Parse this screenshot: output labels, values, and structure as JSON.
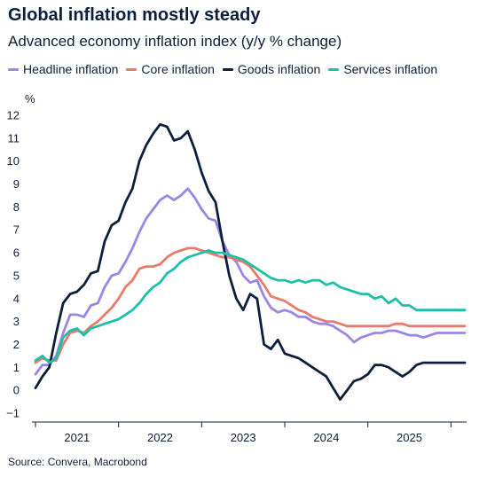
{
  "chart_data": {
    "type": "line",
    "title": "Global inflation mostly steady",
    "subtitle": "Advanced economy inflation index (y/y % change)",
    "ylabel": "%",
    "xlabel": "",
    "ylim": [
      -1,
      12
    ],
    "yticks": [
      -1,
      0,
      1,
      2,
      3,
      4,
      5,
      6,
      7,
      8,
      9,
      10,
      11,
      12
    ],
    "xlim": [
      2020.0,
      2025.167
    ],
    "xticks": [
      {
        "label": "2021",
        "pos": 2020.5
      },
      {
        "label": "2022",
        "pos": 2021.5
      },
      {
        "label": "2023",
        "pos": 2022.5
      },
      {
        "label": "2024",
        "pos": 2023.5
      },
      {
        "label": "2025",
        "pos": 2024.5
      }
    ],
    "year_separators": [
      2020.0,
      2021.0,
      2022.0,
      2023.0,
      2024.0,
      2025.0
    ],
    "legend_position": "top",
    "grid": false,
    "series": [
      {
        "name": "Headline inflation",
        "color": "#9b86e6",
        "x": [
          2020.0,
          2020.083,
          2020.167,
          2020.25,
          2020.333,
          2020.417,
          2020.5,
          2020.583,
          2020.667,
          2020.75,
          2020.833,
          2020.917,
          2021.0,
          2021.083,
          2021.167,
          2021.25,
          2021.333,
          2021.417,
          2021.5,
          2021.583,
          2021.667,
          2021.75,
          2021.833,
          2021.917,
          2022.0,
          2022.083,
          2022.167,
          2022.25,
          2022.333,
          2022.417,
          2022.5,
          2022.583,
          2022.667,
          2022.75,
          2022.833,
          2022.917,
          2023.0,
          2023.083,
          2023.167,
          2023.25,
          2023.333,
          2023.417,
          2023.5,
          2023.583,
          2023.667,
          2023.75,
          2023.833,
          2023.917,
          2024.0,
          2024.083,
          2024.167,
          2024.25,
          2024.333,
          2024.417,
          2024.5,
          2024.583,
          2024.667,
          2024.75,
          2024.833,
          2024.917,
          2025.0,
          2025.083,
          2025.167
        ],
        "y": [
          0.7,
          1.1,
          1.1,
          1.5,
          2.5,
          3.3,
          3.3,
          3.2,
          3.7,
          3.8,
          4.5,
          5.0,
          5.1,
          5.6,
          6.2,
          6.9,
          7.5,
          7.9,
          8.3,
          8.5,
          8.3,
          8.5,
          8.8,
          8.4,
          7.9,
          7.5,
          7.4,
          6.5,
          5.9,
          5.6,
          5.0,
          4.7,
          4.8,
          4.1,
          3.6,
          3.4,
          3.5,
          3.4,
          3.2,
          3.2,
          3.0,
          2.9,
          2.9,
          2.8,
          2.6,
          2.4,
          2.1,
          2.3,
          2.4,
          2.5,
          2.5,
          2.6,
          2.6,
          2.5,
          2.4,
          2.4,
          2.3,
          2.4,
          2.5,
          2.5,
          2.5,
          2.5,
          2.5
        ]
      },
      {
        "name": "Core inflation",
        "color": "#ea7a6b",
        "x": [
          2020.0,
          2020.083,
          2020.167,
          2020.25,
          2020.333,
          2020.417,
          2020.5,
          2020.583,
          2020.667,
          2020.75,
          2020.833,
          2020.917,
          2021.0,
          2021.083,
          2021.167,
          2021.25,
          2021.333,
          2021.417,
          2021.5,
          2021.583,
          2021.667,
          2021.75,
          2021.833,
          2021.917,
          2022.0,
          2022.083,
          2022.167,
          2022.25,
          2022.333,
          2022.417,
          2022.5,
          2022.583,
          2022.667,
          2022.75,
          2022.833,
          2022.917,
          2023.0,
          2023.083,
          2023.167,
          2023.25,
          2023.333,
          2023.417,
          2023.5,
          2023.583,
          2023.667,
          2023.75,
          2023.833,
          2023.917,
          2024.0,
          2024.083,
          2024.167,
          2024.25,
          2024.333,
          2024.417,
          2024.5,
          2024.583,
          2024.667,
          2024.75,
          2024.833,
          2024.917,
          2025.0,
          2025.083,
          2025.167
        ],
        "y": [
          1.2,
          1.4,
          1.3,
          1.3,
          2.0,
          2.5,
          2.6,
          2.5,
          2.8,
          3.0,
          3.3,
          3.6,
          4.0,
          4.5,
          4.8,
          5.3,
          5.4,
          5.4,
          5.5,
          5.8,
          6.0,
          6.1,
          6.2,
          6.2,
          6.1,
          6.0,
          5.9,
          5.8,
          5.8,
          5.7,
          5.6,
          5.4,
          5.0,
          4.6,
          4.1,
          4.0,
          3.9,
          3.7,
          3.5,
          3.4,
          3.2,
          3.1,
          3.0,
          3.0,
          2.9,
          2.8,
          2.8,
          2.8,
          2.8,
          2.8,
          2.8,
          2.8,
          2.9,
          2.9,
          2.8,
          2.8,
          2.8,
          2.8,
          2.8,
          2.8,
          2.8,
          2.8,
          2.8
        ]
      },
      {
        "name": "Goods inflation",
        "color": "#0d1f3c",
        "x": [
          2020.0,
          2020.083,
          2020.167,
          2020.25,
          2020.333,
          2020.417,
          2020.5,
          2020.583,
          2020.667,
          2020.75,
          2020.833,
          2020.917,
          2021.0,
          2021.083,
          2021.167,
          2021.25,
          2021.333,
          2021.417,
          2021.5,
          2021.583,
          2021.667,
          2021.75,
          2021.833,
          2021.917,
          2022.0,
          2022.083,
          2022.167,
          2022.25,
          2022.333,
          2022.417,
          2022.5,
          2022.583,
          2022.667,
          2022.75,
          2022.833,
          2022.917,
          2023.0,
          2023.083,
          2023.167,
          2023.25,
          2023.333,
          2023.417,
          2023.5,
          2023.583,
          2023.667,
          2023.75,
          2023.833,
          2023.917,
          2024.0,
          2024.083,
          2024.167,
          2024.25,
          2024.333,
          2024.417,
          2024.5,
          2024.583,
          2024.667,
          2024.75,
          2024.833,
          2024.917,
          2025.0,
          2025.083,
          2025.167
        ],
        "y": [
          0.1,
          0.6,
          1.0,
          2.5,
          3.8,
          4.2,
          4.3,
          4.6,
          5.1,
          5.2,
          6.5,
          7.2,
          7.4,
          8.2,
          8.8,
          10.0,
          10.7,
          11.2,
          11.6,
          11.5,
          10.9,
          11.0,
          11.3,
          10.5,
          9.5,
          8.7,
          8.2,
          6.5,
          5.0,
          4.0,
          3.5,
          4.2,
          4.0,
          2.0,
          1.8,
          2.2,
          1.6,
          1.5,
          1.4,
          1.2,
          1.0,
          0.8,
          0.6,
          0.1,
          -0.4,
          0.0,
          0.4,
          0.5,
          0.7,
          1.1,
          1.1,
          1.0,
          0.8,
          0.6,
          0.8,
          1.1,
          1.2,
          1.2,
          1.2,
          1.2,
          1.2,
          1.2,
          1.2
        ]
      },
      {
        "name": "Services inflation",
        "color": "#1ec1a8",
        "x": [
          2020.0,
          2020.083,
          2020.167,
          2020.25,
          2020.333,
          2020.417,
          2020.5,
          2020.583,
          2020.667,
          2020.75,
          2020.833,
          2020.917,
          2021.0,
          2021.083,
          2021.167,
          2021.25,
          2021.333,
          2021.417,
          2021.5,
          2021.583,
          2021.667,
          2021.75,
          2021.833,
          2021.917,
          2022.0,
          2022.083,
          2022.167,
          2022.25,
          2022.333,
          2022.417,
          2022.5,
          2022.583,
          2022.667,
          2022.75,
          2022.833,
          2022.917,
          2023.0,
          2023.083,
          2023.167,
          2023.25,
          2023.333,
          2023.417,
          2023.5,
          2023.583,
          2023.667,
          2023.75,
          2023.833,
          2023.917,
          2024.0,
          2024.083,
          2024.167,
          2024.25,
          2024.333,
          2024.417,
          2024.5,
          2024.583,
          2024.667,
          2024.75,
          2024.833,
          2024.917,
          2025.0,
          2025.083,
          2025.167
        ],
        "y": [
          1.3,
          1.5,
          1.2,
          1.4,
          2.3,
          2.6,
          2.7,
          2.4,
          2.7,
          2.8,
          2.9,
          3.0,
          3.1,
          3.3,
          3.5,
          3.8,
          4.2,
          4.5,
          4.7,
          5.1,
          5.3,
          5.6,
          5.8,
          5.9,
          6.0,
          6.1,
          6.0,
          6.0,
          5.9,
          5.8,
          5.7,
          5.5,
          5.3,
          5.1,
          4.9,
          4.8,
          4.8,
          4.7,
          4.8,
          4.7,
          4.8,
          4.8,
          4.6,
          4.7,
          4.5,
          4.4,
          4.3,
          4.2,
          4.2,
          4.0,
          4.1,
          3.8,
          4.0,
          3.7,
          3.7,
          3.5,
          3.5,
          3.5,
          3.5,
          3.5,
          3.5,
          3.5,
          3.5
        ]
      }
    ],
    "source": "Source: Convera, Macrobond"
  }
}
